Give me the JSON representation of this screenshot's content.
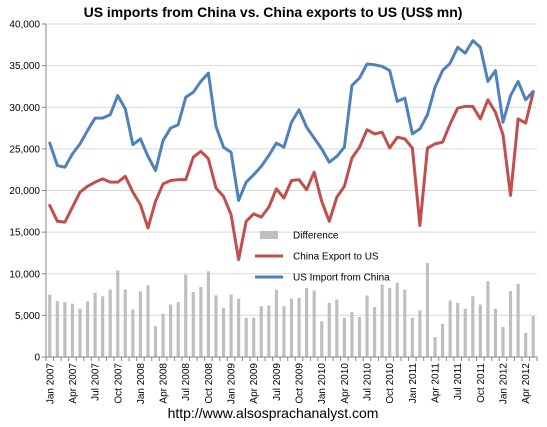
{
  "chart_data": {
    "type": "line",
    "title": "US imports from China vs. China exports to US (US$ mn)",
    "footer": "http://www.alsosprachanalyst.com",
    "ylim": [
      0,
      40000
    ],
    "yticks": [
      "0",
      "5,000",
      "10,000",
      "15,000",
      "20,000",
      "25,000",
      "30,000",
      "35,000",
      "40,000"
    ],
    "x_tick_labels": [
      "Jan 2007",
      "Apr 2007",
      "Jul 2007",
      "Oct 2007",
      "Jan 2008",
      "Apr 2008",
      "Jul 2008",
      "Oct 2008",
      "Jan 2009",
      "Apr 2009",
      "Jul 2009",
      "Oct 2009",
      "Jan 2010",
      "Apr 2010",
      "Jul 2010",
      "Oct 2010",
      "Jan 2011",
      "Apr 2011",
      "Jul 2011",
      "Oct 2011",
      "Jan 2012",
      "Apr 2012"
    ],
    "n_points": 65,
    "legend_placement": "center",
    "grid": "horizontal",
    "colors": {
      "difference": "#bfbfbf",
      "china_export": "#c0504d",
      "us_import": "#4f81bd"
    },
    "series": [
      {
        "name": "Difference",
        "kind": "bar",
        "values": [
          7500,
          6700,
          6600,
          6400,
          5800,
          6700,
          7700,
          7300,
          8100,
          10400,
          8100,
          5700,
          7900,
          8600,
          3700,
          5200,
          6300,
          6600,
          9900,
          7800,
          8400,
          10300,
          7400,
          5900,
          7500,
          7000,
          4700,
          4700,
          6100,
          6200,
          8100,
          6100,
          7000,
          7100,
          8300,
          8000,
          4300,
          6500,
          6900,
          4700,
          5400,
          4800,
          7400,
          6000,
          8700,
          8300,
          8900,
          8100,
          4700,
          5600,
          11300,
          2400,
          4000,
          6800,
          6500,
          5800,
          7300,
          6300,
          9100,
          5800,
          3600,
          7900,
          8800,
          2900,
          4900
        ]
      },
      {
        "name": "China Export to US",
        "kind": "line",
        "values": [
          18200,
          16300,
          16200,
          18000,
          19800,
          20500,
          21000,
          21400,
          21000,
          21000,
          21700,
          19800,
          18300,
          15500,
          18700,
          20800,
          21200,
          21300,
          21300,
          24000,
          24700,
          23800,
          20300,
          19300,
          17100,
          11700,
          16300,
          17200,
          16800,
          18000,
          20200,
          19100,
          21200,
          21300,
          20100,
          22200,
          18700,
          16300,
          19200,
          20500,
          23900,
          25200,
          27300,
          26800,
          27000,
          25100,
          26400,
          26200,
          25100,
          15800,
          25100,
          25600,
          25800,
          28000,
          29900,
          30100,
          30100,
          28600,
          30900,
          29400,
          26700,
          19400,
          28600,
          28100,
          31800
        ]
      },
      {
        "name": "US Import from China",
        "kind": "line",
        "values": [
          25700,
          23000,
          22800,
          24400,
          25600,
          27200,
          28700,
          28700,
          29100,
          31400,
          29800,
          25500,
          26200,
          24100,
          22400,
          26000,
          27500,
          27900,
          31200,
          31800,
          33100,
          34100,
          27700,
          25200,
          24600,
          18800,
          21000,
          21900,
          22900,
          24200,
          25700,
          25200,
          28200,
          29700,
          27600,
          26300,
          25000,
          23400,
          24100,
          25200,
          32600,
          33500,
          35200,
          35100,
          34900,
          34400,
          30700,
          31100,
          26800,
          27400,
          29100,
          32400,
          34400,
          35300,
          37200,
          36500,
          38000,
          37200,
          33100,
          34400,
          28200,
          31400,
          33100,
          30900,
          31900
        ]
      }
    ]
  }
}
